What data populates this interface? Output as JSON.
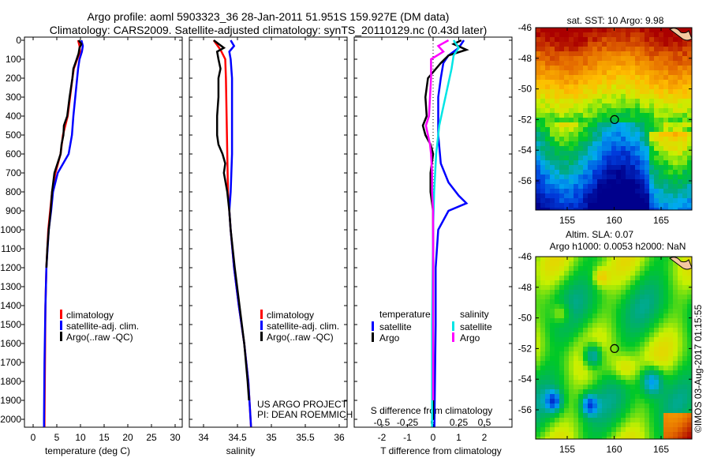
{
  "title_line1": "Argo profile: aoml 5903323_36 28-Jan-2011 51.951S 159.927E (DM data)",
  "title_line2": "Climatology: CARS2009. Satellite-adjusted climatology: synTS_20110129.nc (0.43d later)",
  "colors": {
    "climatology": "#ff0000",
    "satellite": "#0000ff",
    "argo": "#000000",
    "s_satellite": "#00e5e5",
    "s_argo": "#ff00ff"
  },
  "chart_data": [
    {
      "type": "line",
      "xlabel": "temperature (deg C)",
      "xlim": [
        -2,
        31
      ],
      "ylim": [
        2050,
        0
      ],
      "xticks": [
        "0",
        "5",
        "10",
        "15",
        "20",
        "25",
        "30"
      ],
      "yticks": [
        "0",
        "100",
        "200",
        "300",
        "400",
        "500",
        "600",
        "700",
        "800",
        "900",
        "1000",
        "1100",
        "1200",
        "1300",
        "1400",
        "1500",
        "1600",
        "1700",
        "1800",
        "1900",
        "2000"
      ],
      "legend": [
        "climatology",
        "satellite-adj. clim.",
        "Argo(..raw -QC)"
      ],
      "series": [
        {
          "name": "climatology",
          "color": "#ff0000",
          "depth": [
            0,
            30,
            60,
            100,
            150,
            200,
            300,
            400,
            450,
            500,
            600,
            700,
            800,
            900,
            1000,
            1200,
            1400,
            1700,
            2000,
            2040
          ],
          "values": [
            9.5,
            9.8,
            9.9,
            9.3,
            8.6,
            8.3,
            7.8,
            7.3,
            6.8,
            6.3,
            5.8,
            4.7,
            4.0,
            3.6,
            3.2,
            2.8,
            2.6,
            2.5,
            2.4,
            2.4
          ]
        },
        {
          "name": "satellite-adj. clim.",
          "color": "#0000ff",
          "depth": [
            0,
            30,
            60,
            100,
            150,
            200,
            300,
            400,
            500,
            600,
            700,
            800,
            900,
            1000,
            1200,
            1400,
            1700,
            2000,
            2040
          ],
          "values": [
            10.2,
            10.5,
            10.3,
            9.8,
            9.5,
            9.3,
            8.9,
            8.5,
            8.2,
            7.5,
            5.2,
            4.2,
            3.8,
            3.3,
            2.8,
            2.6,
            2.4,
            2.3,
            2.3
          ]
        },
        {
          "name": "Argo(..raw -QC)",
          "color": "#000000",
          "depth": [
            0,
            20,
            40,
            70,
            100,
            150,
            200,
            300,
            400,
            450,
            500,
            550,
            600,
            700,
            800,
            900,
            1000,
            1100,
            1200
          ],
          "values": [
            9.6,
            10.2,
            9.8,
            9.6,
            9.2,
            8.5,
            8.3,
            7.7,
            7.2,
            6.5,
            6.4,
            6.0,
            5.8,
            4.5,
            4.0,
            3.7,
            3.3,
            3.0,
            2.8
          ]
        }
      ]
    },
    {
      "type": "line",
      "xlabel": "salinity",
      "xlim": [
        33.8,
        36.1
      ],
      "ylim": [
        2050,
        0
      ],
      "xticks": [
        "34",
        "34.5",
        "35",
        "35.5",
        "36"
      ],
      "legend": [
        "climatology",
        "satellite-adj. clim.",
        "Argo(..raw -QC)"
      ],
      "annotation": [
        "US ARGO PROJECT",
        "PI: DEAN ROEMMICH"
      ],
      "series": [
        {
          "name": "climatology",
          "color": "#ff0000",
          "depth": [
            0,
            50,
            100,
            200,
            400,
            600,
            800,
            900,
            1000,
            1200,
            1400,
            1600,
            1800,
            2040
          ],
          "values": [
            34.15,
            34.25,
            34.32,
            34.33,
            34.34,
            34.35,
            34.36,
            34.38,
            34.4,
            34.45,
            34.52,
            34.6,
            34.66,
            34.7
          ]
        },
        {
          "name": "satellite-adj. clim.",
          "color": "#0000ff",
          "depth": [
            0,
            30,
            60,
            100,
            200,
            400,
            600,
            800,
            900,
            1000,
            1200,
            1400,
            1600,
            1800,
            2040
          ],
          "values": [
            34.4,
            34.45,
            34.38,
            34.4,
            34.42,
            34.42,
            34.42,
            34.4,
            34.38,
            34.4,
            34.45,
            34.52,
            34.6,
            34.66,
            34.7
          ]
        },
        {
          "name": "Argo(..raw -QC)",
          "color": "#000000",
          "depth": [
            0,
            40,
            60,
            100,
            150,
            200,
            300,
            400,
            500,
            550,
            600,
            650,
            700,
            800,
            900,
            1000,
            1200,
            1400,
            1600,
            1800,
            1900
          ],
          "values": [
            34.15,
            34.3,
            34.2,
            34.22,
            34.25,
            34.22,
            34.22,
            34.2,
            34.2,
            34.22,
            34.28,
            34.32,
            34.3,
            34.35,
            34.38,
            34.4,
            34.46,
            34.53,
            34.6,
            34.65,
            34.67
          ]
        }
      ]
    },
    {
      "type": "line",
      "xlabel": "T difference from climatology",
      "xlim": [
        -3,
        3
      ],
      "ylim": [
        2050,
        0
      ],
      "xticks": [
        "-2",
        "-1",
        "0",
        "1",
        "2"
      ],
      "x2label": "S difference from climatology",
      "x2ticks": [
        "-0.5",
        "-0.25",
        "0",
        "0.25",
        "0.5"
      ],
      "legend_temperature": {
        "title": "temperature",
        "items": [
          "satellite",
          "Argo"
        ]
      },
      "legend_salinity": {
        "title": "salinity",
        "items": [
          "satellite",
          "Argo"
        ]
      },
      "series": [
        {
          "name": "T satellite",
          "color": "#0000ff",
          "depth": [
            0,
            40,
            80,
            120,
            200,
            300,
            500,
            650,
            750,
            820,
            860,
            900,
            1000,
            1200,
            1500,
            2040
          ],
          "values": [
            1.2,
            1.0,
            0.6,
            0.4,
            0.3,
            0.2,
            0.2,
            0.3,
            0.6,
            1.0,
            1.3,
            0.6,
            0.2,
            0.1,
            0.1,
            0.05
          ]
        },
        {
          "name": "T Argo",
          "color": "#000000",
          "depth": [
            0,
            20,
            50,
            80,
            120,
            200,
            300,
            400,
            450,
            500,
            550,
            600,
            700,
            800,
            900,
            1000,
            1500,
            2000
          ],
          "values": [
            1.1,
            0.8,
            1.3,
            0.6,
            0.3,
            -0.2,
            -0.3,
            -0.25,
            -0.4,
            -0.3,
            -0.1,
            0,
            -0.1,
            -0.1,
            0,
            0,
            0,
            0
          ]
        },
        {
          "name": "S satellite",
          "color": "#00e5e5",
          "depth": [
            0,
            40,
            80,
            150,
            250,
            350,
            450,
            600,
            800,
            1000,
            1500,
            2040
          ],
          "values": [
            0.2,
            0.25,
            0.2,
            0.18,
            0.14,
            0.1,
            0.06,
            0.03,
            0.01,
            0,
            -0.01,
            -0.01
          ]
        },
        {
          "name": "S Argo",
          "color": "#ff00ff",
          "depth": [
            0,
            30,
            60,
            100,
            200,
            300,
            400,
            450,
            500,
            550,
            600,
            700,
            800,
            900,
            1000,
            1500,
            1900
          ],
          "values": [
            0.15,
            0.05,
            0.1,
            -0.02,
            -0.02,
            -0.03,
            -0.04,
            -0.07,
            -0.05,
            -0.03,
            -0.02,
            -0.01,
            -0.01,
            0,
            0,
            0,
            0
          ]
        }
      ]
    }
  ],
  "map_sst": {
    "title": "sat. SST: 10 Argo: 9.98",
    "lat_ticks": [
      "-46",
      "-48",
      "-50",
      "-52",
      "-54",
      "-56"
    ],
    "lon_ticks": [
      "155",
      "160",
      "165"
    ]
  },
  "map_sla": {
    "title1": "Altim. SLA: 0.07",
    "title2": "Argo h1000: 0.0053 h2000: NaN",
    "lat_ticks": [
      "-46",
      "-48",
      "-50",
      "-52",
      "-54",
      "-56"
    ],
    "lon_ticks": [
      "155",
      "160",
      "165"
    ]
  },
  "credit": "©IMOS 03-Aug-2017 01:15:55"
}
